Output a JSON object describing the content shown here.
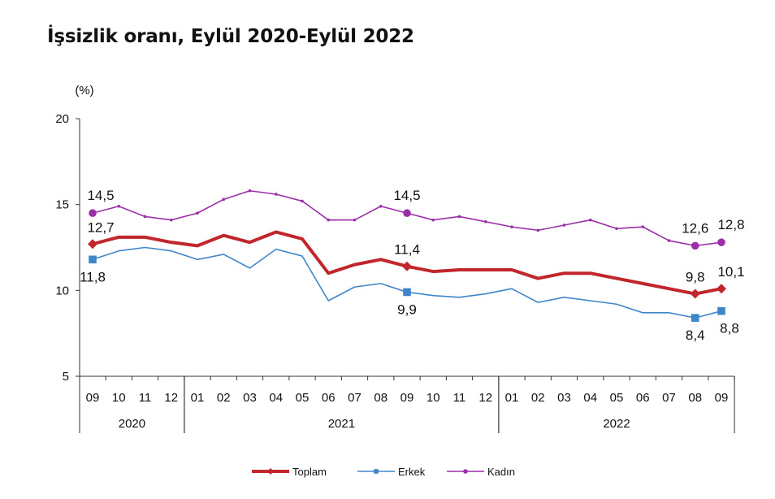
{
  "chart_data": {
    "type": "line",
    "title": "İşsizlik oranı, Eylül 2020-Eylül 2022",
    "ylabel": "(%)",
    "ylim": [
      5,
      20
    ],
    "yticks": [
      5,
      10,
      15,
      20
    ],
    "grid": false,
    "legend_position": "bottom",
    "categories": [
      "09",
      "10",
      "11",
      "12",
      "01",
      "02",
      "03",
      "04",
      "05",
      "06",
      "07",
      "08",
      "09",
      "10",
      "11",
      "12",
      "01",
      "02",
      "03",
      "04",
      "05",
      "06",
      "07",
      "08",
      "09"
    ],
    "year_groups": [
      {
        "label": "2020",
        "start": 0,
        "end": 3
      },
      {
        "label": "2021",
        "start": 4,
        "end": 15
      },
      {
        "label": "2022",
        "start": 16,
        "end": 24
      }
    ],
    "series": [
      {
        "name": "Toplam",
        "color": "#c0262c",
        "marker": "diamond",
        "values": [
          12.7,
          13.1,
          13.1,
          12.8,
          12.6,
          13.2,
          12.8,
          13.4,
          13.0,
          11.0,
          11.5,
          11.8,
          11.4,
          11.1,
          11.2,
          11.2,
          11.2,
          10.7,
          11.0,
          11.0,
          10.7,
          10.4,
          10.1,
          9.8,
          10.1
        ],
        "labels": [
          {
            "index": 0,
            "text": "12,7"
          },
          {
            "index": 12,
            "text": "11,4"
          },
          {
            "index": 23,
            "text": "9,8"
          },
          {
            "index": 24,
            "text": "10,1"
          }
        ]
      },
      {
        "name": "Erkek",
        "color": "#3f86c9",
        "marker": "square",
        "values": [
          11.8,
          12.3,
          12.5,
          12.3,
          11.8,
          12.1,
          11.3,
          12.4,
          12.0,
          9.4,
          10.2,
          10.4,
          9.9,
          9.7,
          9.6,
          9.8,
          10.1,
          9.3,
          9.6,
          9.4,
          9.2,
          8.7,
          8.7,
          8.4,
          8.8
        ],
        "labels": [
          {
            "index": 0,
            "text": "11,8"
          },
          {
            "index": 12,
            "text": "9,9"
          },
          {
            "index": 23,
            "text": "8,4"
          },
          {
            "index": 24,
            "text": "8,8"
          }
        ]
      },
      {
        "name": "Kadın",
        "color": "#9b2fa8",
        "marker": "circle",
        "values": [
          14.5,
          14.9,
          14.3,
          14.1,
          14.5,
          15.3,
          15.8,
          15.6,
          15.2,
          14.1,
          14.1,
          14.9,
          14.5,
          14.1,
          14.3,
          14.0,
          13.7,
          13.5,
          13.8,
          14.1,
          13.6,
          13.7,
          12.9,
          12.6,
          12.8
        ],
        "labels": [
          {
            "index": 0,
            "text": "14,5"
          },
          {
            "index": 12,
            "text": "14,5"
          },
          {
            "index": 23,
            "text": "12,6"
          },
          {
            "index": 24,
            "text": "12,8"
          }
        ]
      }
    ]
  }
}
